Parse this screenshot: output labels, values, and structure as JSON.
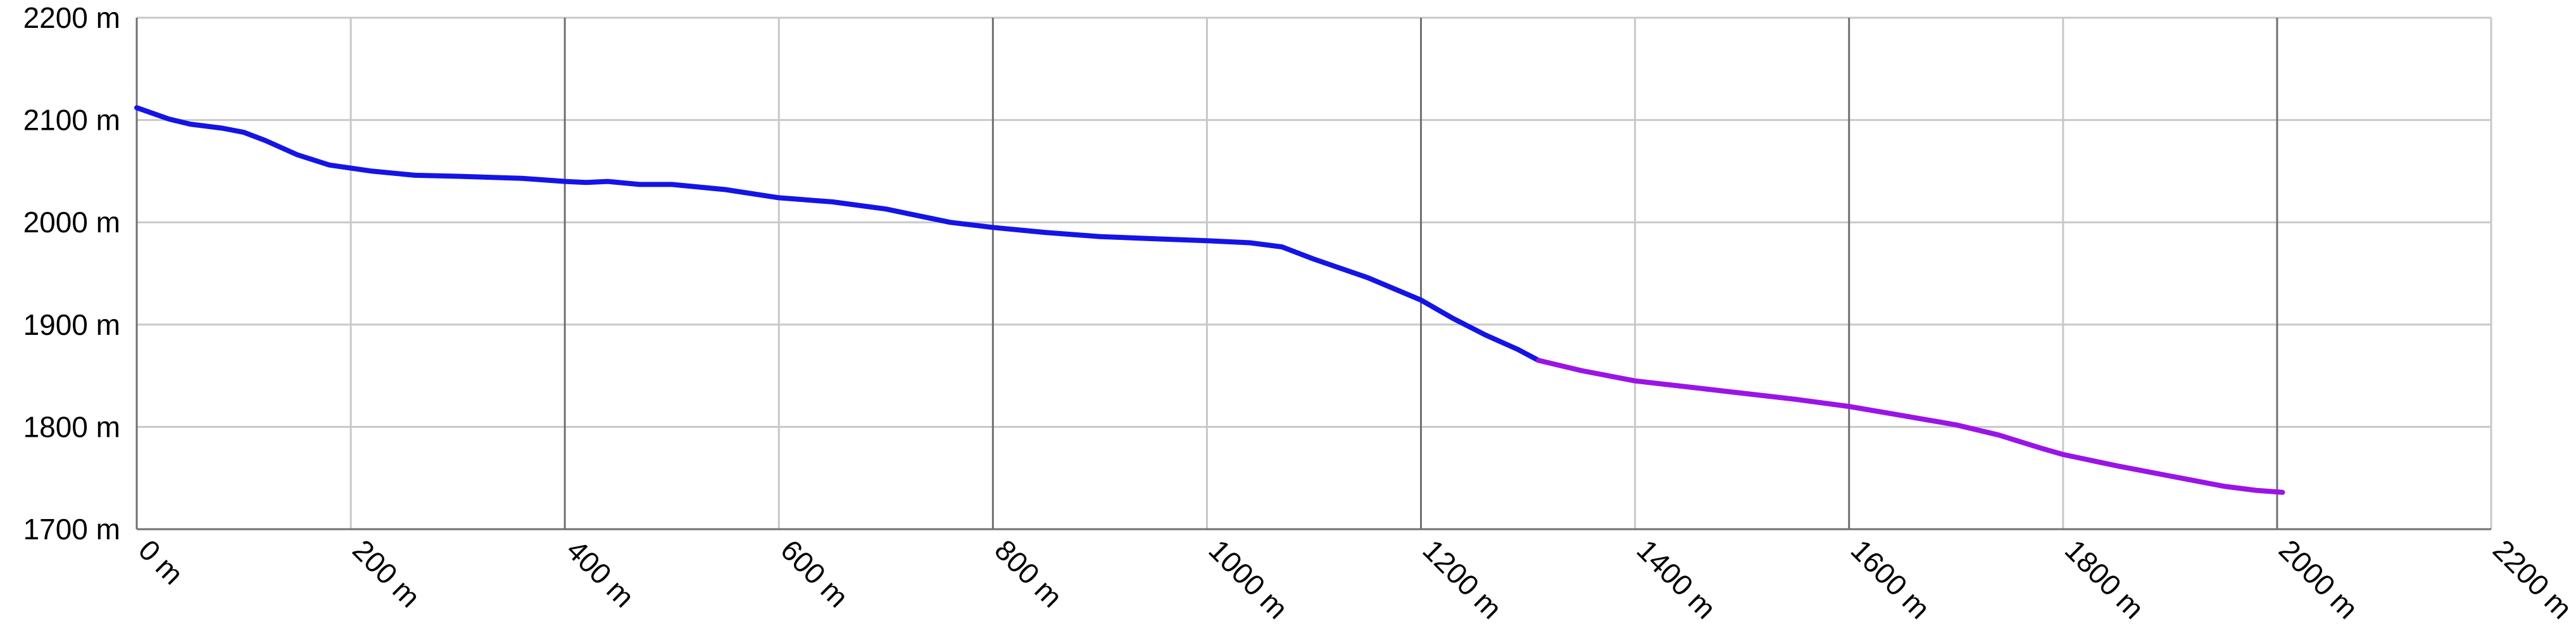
{
  "chart_data": {
    "type": "line",
    "title": "",
    "xlabel": "",
    "ylabel": "",
    "xlim": [
      0,
      2200
    ],
    "ylim": [
      1700,
      2200
    ],
    "grid": true,
    "x_unit": "m",
    "y_unit": "m",
    "x_ticks": [
      {
        "value": 0,
        "label": "0 m"
      },
      {
        "value": 200,
        "label": "200 m"
      },
      {
        "value": 400,
        "label": "400 m"
      },
      {
        "value": 600,
        "label": "600 m"
      },
      {
        "value": 800,
        "label": "800 m"
      },
      {
        "value": 1000,
        "label": "1000 m"
      },
      {
        "value": 1200,
        "label": "1200 m"
      },
      {
        "value": 1400,
        "label": "1400 m"
      },
      {
        "value": 1600,
        "label": "1600 m"
      },
      {
        "value": 1800,
        "label": "1800 m"
      },
      {
        "value": 2000,
        "label": "2000 m"
      },
      {
        "value": 2200,
        "label": "2200 m"
      }
    ],
    "y_ticks": [
      {
        "value": 1700,
        "label": "1700 m"
      },
      {
        "value": 1800,
        "label": "1800 m"
      },
      {
        "value": 1900,
        "label": "1900 m"
      },
      {
        "value": 2000,
        "label": "2000 m"
      },
      {
        "value": 2100,
        "label": "2100 m"
      },
      {
        "value": 2200,
        "label": "2200 m"
      }
    ],
    "colors": {
      "grid_minor": "#c8c8c8",
      "grid_major": "#707070",
      "axis": "#707070"
    },
    "series": [
      {
        "color": "#1414e6",
        "points": [
          [
            0,
            2112
          ],
          [
            30,
            2101
          ],
          [
            50,
            2096
          ],
          [
            80,
            2092
          ],
          [
            100,
            2088
          ],
          [
            120,
            2080
          ],
          [
            150,
            2066
          ],
          [
            180,
            2056
          ],
          [
            220,
            2050
          ],
          [
            260,
            2046
          ],
          [
            300,
            2045
          ],
          [
            360,
            2043
          ],
          [
            400,
            2040
          ],
          [
            420,
            2039
          ],
          [
            440,
            2040
          ],
          [
            470,
            2037
          ],
          [
            500,
            2037
          ],
          [
            550,
            2032
          ],
          [
            600,
            2024
          ],
          [
            650,
            2020
          ],
          [
            700,
            2013
          ],
          [
            760,
            2000
          ],
          [
            800,
            1995
          ],
          [
            850,
            1990
          ],
          [
            900,
            1986
          ],
          [
            950,
            1984
          ],
          [
            1000,
            1982
          ],
          [
            1040,
            1980
          ],
          [
            1070,
            1976
          ],
          [
            1100,
            1964
          ],
          [
            1150,
            1946
          ],
          [
            1200,
            1924
          ],
          [
            1230,
            1906
          ],
          [
            1260,
            1890
          ],
          [
            1290,
            1876
          ],
          [
            1310,
            1865
          ]
        ]
      },
      {
        "color": "#9b14e6",
        "points": [
          [
            1310,
            1865
          ],
          [
            1350,
            1855
          ],
          [
            1400,
            1845
          ],
          [
            1450,
            1839
          ],
          [
            1500,
            1833
          ],
          [
            1550,
            1827
          ],
          [
            1600,
            1820
          ],
          [
            1650,
            1811
          ],
          [
            1700,
            1802
          ],
          [
            1740,
            1792
          ],
          [
            1780,
            1779
          ],
          [
            1800,
            1773
          ],
          [
            1850,
            1762
          ],
          [
            1900,
            1752
          ],
          [
            1950,
            1742
          ],
          [
            1980,
            1738
          ],
          [
            2005,
            1736
          ]
        ]
      }
    ]
  }
}
